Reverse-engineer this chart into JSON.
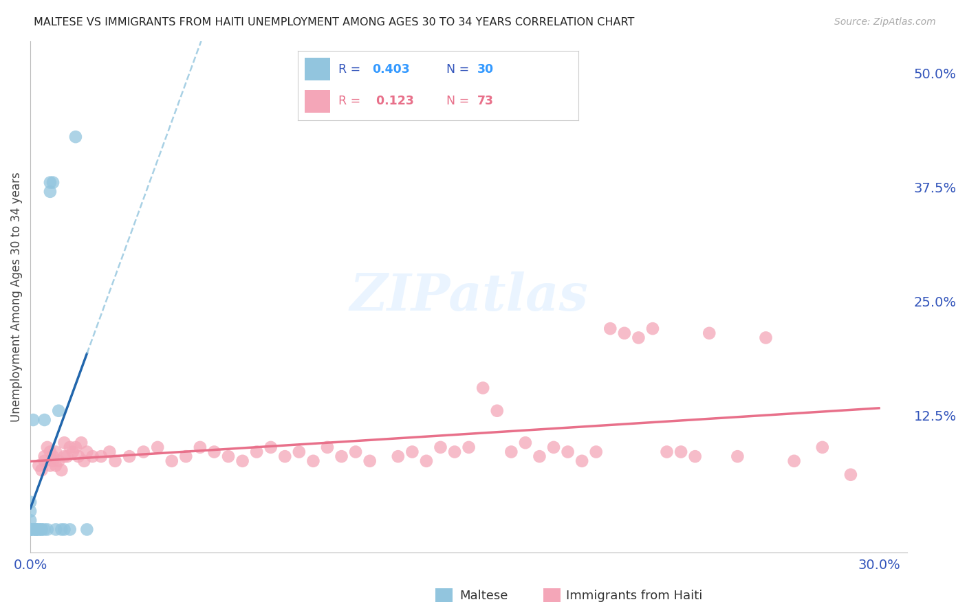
{
  "title": "MALTESE VS IMMIGRANTS FROM HAITI UNEMPLOYMENT AMONG AGES 30 TO 34 YEARS CORRELATION CHART",
  "source": "Source: ZipAtlas.com",
  "ylabel": "Unemployment Among Ages 30 to 34 years",
  "xlim": [
    0.0,
    0.31
  ],
  "ylim": [
    -0.025,
    0.535
  ],
  "xticks": [
    0.0,
    0.05,
    0.1,
    0.15,
    0.2,
    0.25,
    0.3
  ],
  "yticks_right": [
    0.0,
    0.125,
    0.25,
    0.375,
    0.5
  ],
  "yticklabels_right": [
    "",
    "12.5%",
    "25.0%",
    "37.5%",
    "50.0%"
  ],
  "maltese_color": "#92C5DE",
  "haiti_color": "#F4A6B8",
  "maltese_line_color": "#2166AC",
  "maltese_dash_color": "#92C5DE",
  "haiti_line_color": "#E8708A",
  "background_color": "#ffffff",
  "grid_color": "#e0e0e0",
  "maltese_x": [
    0.0,
    0.0,
    0.0,
    0.0,
    0.0,
    0.0,
    0.0,
    0.001,
    0.001,
    0.001,
    0.002,
    0.002,
    0.002,
    0.003,
    0.003,
    0.004,
    0.004,
    0.005,
    0.005,
    0.006,
    0.007,
    0.007,
    0.008,
    0.009,
    0.01,
    0.011,
    0.012,
    0.014,
    0.016,
    0.02
  ],
  "maltese_y": [
    0.0,
    0.0,
    0.0,
    0.0,
    0.01,
    0.02,
    0.03,
    0.0,
    0.0,
    0.12,
    0.0,
    0.0,
    0.0,
    0.0,
    0.0,
    0.0,
    0.0,
    0.0,
    0.12,
    0.0,
    0.37,
    0.38,
    0.38,
    0.0,
    0.13,
    0.0,
    0.0,
    0.0,
    0.43,
    0.0
  ],
  "haiti_x": [
    0.003,
    0.004,
    0.005,
    0.005,
    0.006,
    0.007,
    0.007,
    0.008,
    0.008,
    0.009,
    0.009,
    0.01,
    0.011,
    0.012,
    0.012,
    0.013,
    0.014,
    0.015,
    0.016,
    0.017,
    0.018,
    0.019,
    0.02,
    0.022,
    0.025,
    0.028,
    0.03,
    0.035,
    0.04,
    0.045,
    0.05,
    0.055,
    0.06,
    0.065,
    0.07,
    0.075,
    0.08,
    0.085,
    0.09,
    0.095,
    0.1,
    0.105,
    0.11,
    0.115,
    0.12,
    0.13,
    0.135,
    0.14,
    0.145,
    0.15,
    0.155,
    0.16,
    0.165,
    0.17,
    0.175,
    0.18,
    0.185,
    0.19,
    0.195,
    0.2,
    0.205,
    0.21,
    0.215,
    0.22,
    0.225,
    0.23,
    0.235,
    0.24,
    0.25,
    0.26,
    0.27,
    0.28,
    0.29
  ],
  "haiti_y": [
    0.07,
    0.065,
    0.08,
    0.075,
    0.09,
    0.085,
    0.07,
    0.075,
    0.08,
    0.085,
    0.07,
    0.075,
    0.065,
    0.08,
    0.095,
    0.08,
    0.09,
    0.085,
    0.09,
    0.08,
    0.095,
    0.075,
    0.085,
    0.08,
    0.08,
    0.085,
    0.075,
    0.08,
    0.085,
    0.09,
    0.075,
    0.08,
    0.09,
    0.085,
    0.08,
    0.075,
    0.085,
    0.09,
    0.08,
    0.085,
    0.075,
    0.09,
    0.08,
    0.085,
    0.075,
    0.08,
    0.085,
    0.075,
    0.09,
    0.085,
    0.09,
    0.155,
    0.13,
    0.085,
    0.095,
    0.08,
    0.09,
    0.085,
    0.075,
    0.085,
    0.22,
    0.215,
    0.21,
    0.22,
    0.085,
    0.085,
    0.08,
    0.215,
    0.08,
    0.21,
    0.075,
    0.09,
    0.06
  ]
}
